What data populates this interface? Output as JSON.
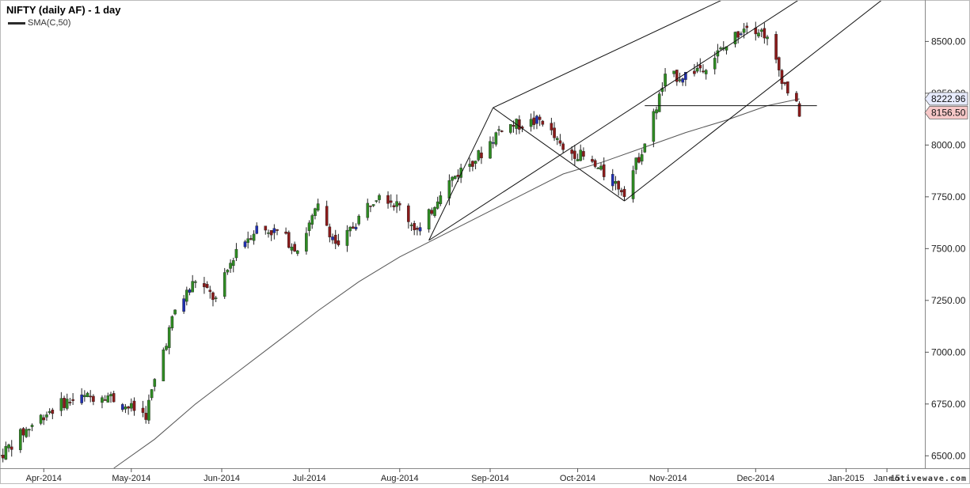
{
  "header": {
    "title": "NIFTY (daily AF) - 1 day",
    "legend_label": "SMA(C,50)"
  },
  "watermark": "motivewave.com",
  "colors": {
    "up": "#2e8b22",
    "down": "#8b1a1a",
    "wick": "#222222",
    "blue_candle": "#1f2fb3",
    "sma": "#555555",
    "lines": "#111111",
    "last_label_bg": "#f7c8c8",
    "sma_label_bg": "#e8ecff"
  },
  "chart_data": {
    "type": "candlestick",
    "title": "NIFTY (daily AF) - 1 day",
    "ylim": [
      6440,
      8700
    ],
    "yticks": [
      6500,
      6750,
      7000,
      7250,
      7500,
      7750,
      8000,
      8250,
      8500
    ],
    "ytick_labels": [
      "6500.00",
      "6750.00",
      "7000.00",
      "7250.00",
      "7500.00",
      "7750.00",
      "8000.00",
      "8250.00",
      "8500.00"
    ],
    "x_start": "2014-03-17",
    "x_end": "2015-01-28",
    "xticks": [
      {
        "date": "2014-04-01",
        "label": "Apr-2014"
      },
      {
        "date": "2014-05-01",
        "label": "May-2014"
      },
      {
        "date": "2014-06-01",
        "label": "Jun-2014"
      },
      {
        "date": "2014-07-01",
        "label": "Jul-2014"
      },
      {
        "date": "2014-08-01",
        "label": "Aug-2014"
      },
      {
        "date": "2014-09-01",
        "label": "Sep-2014"
      },
      {
        "date": "2014-10-01",
        "label": "Oct-2014"
      },
      {
        "date": "2014-11-01",
        "label": "Nov-2014"
      },
      {
        "date": "2014-12-01",
        "label": "Dec-2014"
      },
      {
        "date": "2015-01-01",
        "label": "Jan-2015"
      },
      {
        "date": "2015-01-15",
        "label": "Jan-15"
      }
    ],
    "series_closes": [
      [
        "2014-03-17",
        6500
      ],
      [
        "2014-03-24",
        6600
      ],
      [
        "2014-04-01",
        6700
      ],
      [
        "2014-04-08",
        6760
      ],
      [
        "2014-04-15",
        6780
      ],
      [
        "2014-04-22",
        6800
      ],
      [
        "2014-04-29",
        6740
      ],
      [
        "2014-05-06",
        6700
      ],
      [
        "2014-05-09",
        6860
      ],
      [
        "2014-05-12",
        7010
      ],
      [
        "2014-05-16",
        7200
      ],
      [
        "2014-05-23",
        7350
      ],
      [
        "2014-05-30",
        7250
      ],
      [
        "2014-06-06",
        7500
      ],
      [
        "2014-06-13",
        7600
      ],
      [
        "2014-06-20",
        7580
      ],
      [
        "2014-06-27",
        7500
      ],
      [
        "2014-07-04",
        7700
      ],
      [
        "2014-07-11",
        7500
      ],
      [
        "2014-07-18",
        7650
      ],
      [
        "2014-07-25",
        7780
      ],
      [
        "2014-08-01",
        7700
      ],
      [
        "2014-08-08",
        7570
      ],
      [
        "2014-08-15",
        7780
      ],
      [
        "2014-08-22",
        7880
      ],
      [
        "2014-08-29",
        7960
      ],
      [
        "2014-09-05",
        8090
      ],
      [
        "2014-09-12",
        8100
      ],
      [
        "2014-09-19",
        8120
      ],
      [
        "2014-09-26",
        7970
      ],
      [
        "2014-10-01",
        7960
      ],
      [
        "2014-10-10",
        7860
      ],
      [
        "2014-10-17",
        7780
      ],
      [
        "2014-10-24",
        8010
      ],
      [
        "2014-10-31",
        8320
      ],
      [
        "2014-11-07",
        8340
      ],
      [
        "2014-11-14",
        8390
      ],
      [
        "2014-11-21",
        8480
      ],
      [
        "2014-11-28",
        8590
      ],
      [
        "2014-12-04",
        8540
      ],
      [
        "2014-12-11",
        8290
      ],
      [
        "2014-12-16",
        8156.5
      ]
    ],
    "sma_series": [
      [
        "2014-04-25",
        6440
      ],
      [
        "2014-05-09",
        6580
      ],
      [
        "2014-05-23",
        6750
      ],
      [
        "2014-06-06",
        6900
      ],
      [
        "2014-06-20",
        7050
      ],
      [
        "2014-07-04",
        7200
      ],
      [
        "2014-07-18",
        7340
      ],
      [
        "2014-08-01",
        7460
      ],
      [
        "2014-08-15",
        7560
      ],
      [
        "2014-08-29",
        7660
      ],
      [
        "2014-09-12",
        7760
      ],
      [
        "2014-09-26",
        7860
      ],
      [
        "2014-10-10",
        7920
      ],
      [
        "2014-10-24",
        7990
      ],
      [
        "2014-11-07",
        8060
      ],
      [
        "2014-11-21",
        8120
      ],
      [
        "2014-12-05",
        8190
      ],
      [
        "2014-12-16",
        8222.96
      ]
    ],
    "lines": [
      {
        "from": [
          "2014-08-11",
          7540
        ],
        "to": [
          "2014-09-02",
          8180
        ],
        "name": "pitchfork-left-tine"
      },
      {
        "from": [
          "2014-09-02",
          8180
        ],
        "to": [
          "2014-10-17",
          7730
        ]
      },
      {
        "from": [
          "2014-09-02",
          8180
        ],
        "to": [
          "2014-11-24",
          8730
        ]
      },
      {
        "from": [
          "2014-08-11",
          7540
        ],
        "to": [
          "2014-12-19",
          8730
        ]
      },
      {
        "from": [
          "2014-10-17",
          7730
        ],
        "to": [
          "2015-01-16",
          8730
        ]
      },
      {
        "from": [
          "2014-10-24",
          8190
        ],
        "to": [
          "2014-12-22",
          8190
        ]
      }
    ],
    "last_values": [
      {
        "label": "8222.96",
        "value": 8222.96,
        "kind": "sma"
      },
      {
        "label": "8156.50",
        "value": 8156.5,
        "kind": "last"
      }
    ]
  }
}
